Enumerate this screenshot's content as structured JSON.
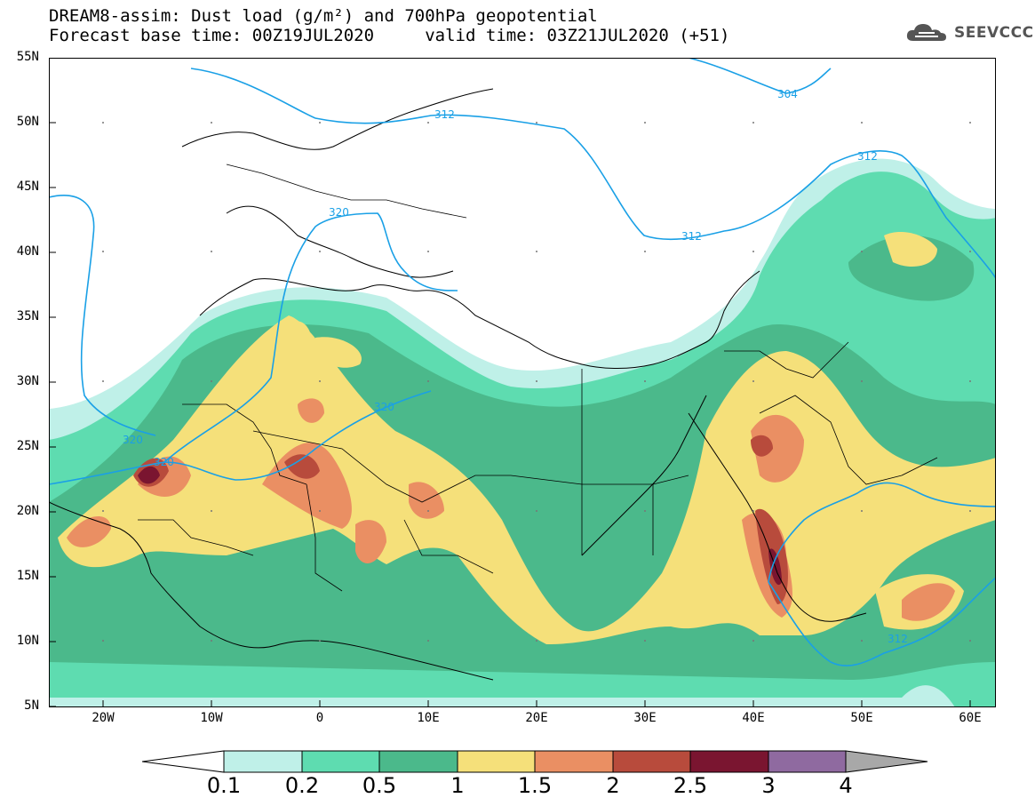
{
  "title_line1": "DREAM8-assim: Dust load (g/m²) and 700hPa geopotential",
  "title_line2": "Forecast base time: 00Z19JUL2020     valid time: 03Z21JUL2020 (+51)",
  "logo_text": "SEEVCCC",
  "lat_labels": [
    "55N",
    "50N",
    "45N",
    "40N",
    "35N",
    "30N",
    "25N",
    "20N",
    "15N",
    "10N",
    "5N"
  ],
  "lon_labels": [
    "20W",
    "10W",
    "0",
    "10E",
    "20E",
    "30E",
    "40E",
    "50E",
    "60E"
  ],
  "contour_labels": [
    "304",
    "312",
    "312",
    "312",
    "312",
    "320",
    "320",
    "320",
    "320"
  ],
  "colorbar": {
    "labels": [
      "0.1",
      "0.2",
      "0.5",
      "1",
      "1.5",
      "2",
      "2.5",
      "3",
      "4"
    ],
    "colors": [
      "#bff0e8",
      "#5edcb0",
      "#4bb98b",
      "#f5e07a",
      "#ea8f63",
      "#b84b3c",
      "#7a1530",
      "#8f6aa0"
    ],
    "low_color": "#ffffff",
    "high_color": "#a8a8a8"
  },
  "map_colors": {
    "ocean_white": "#ffffff",
    "contour": "#1aa0e6",
    "coast": "#000000"
  }
}
